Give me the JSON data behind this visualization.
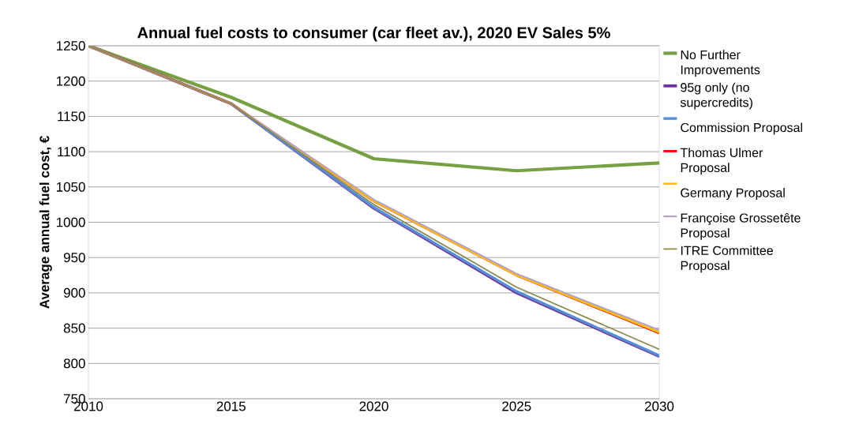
{
  "chart_data": {
    "type": "line",
    "title": "Annual fuel costs to consumer (car fleet av.), 2020 EV Sales 5%",
    "ylabel": "Average annual fuel cost, €",
    "x": [
      2010,
      2015,
      2020,
      2025,
      2030
    ],
    "series": [
      {
        "name": "No Further Improvements",
        "color": "#77a043",
        "values": [
          1250,
          1177,
          1090,
          1073,
          1084
        ]
      },
      {
        "name": "95g only (no supercredits)",
        "color": "#7030a0",
        "values": [
          1250,
          1168,
          1020,
          900,
          810
        ]
      },
      {
        "name": "Commission Proposal",
        "color": "#558ed5",
        "values": [
          1250,
          1168,
          1021,
          902,
          811
        ]
      },
      {
        "name": "Thomas Ulmer Proposal",
        "color": "#ff0000",
        "values": [
          1250,
          1168,
          1030,
          925,
          843
        ]
      },
      {
        "name": "Germany Proposal",
        "color": "#ffc000",
        "values": [
          1250,
          1168,
          1030,
          925,
          844
        ]
      },
      {
        "name": "Françoise Grossetête Proposal",
        "color": "#b3a2c7",
        "values": [
          1250,
          1168,
          1032,
          927,
          847
        ]
      },
      {
        "name": "ITRE Committee Proposal",
        "color": "#8c8a4c",
        "values": [
          1250,
          1168,
          1025,
          908,
          820
        ]
      }
    ],
    "xlim": [
      2010,
      2030
    ],
    "xticks": [
      2010,
      2015,
      2020,
      2025,
      2030
    ],
    "ylim": [
      750,
      1250
    ],
    "yticks": [
      750,
      800,
      850,
      900,
      950,
      1000,
      1050,
      1100,
      1150,
      1200,
      1250
    ],
    "grid": "y",
    "legend": "right",
    "marker": "none",
    "line_style": "solid"
  }
}
